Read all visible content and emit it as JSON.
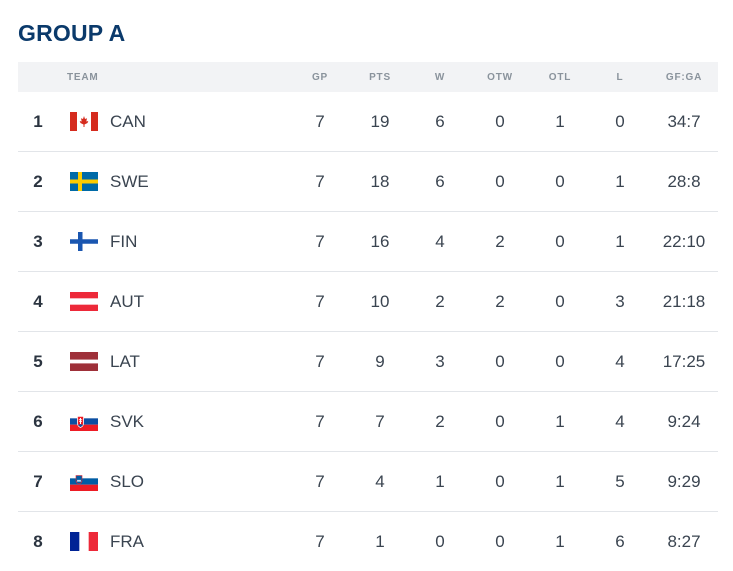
{
  "title": "GROUP A",
  "headers": {
    "team": "TEAM",
    "gp": "GP",
    "pts": "PTS",
    "w": "W",
    "otw": "OTW",
    "otl": "OTL",
    "l": "L",
    "gfga": "GF:GA"
  },
  "rows": [
    {
      "rank": "1",
      "team": "CAN",
      "flag": "canada-flag-icon",
      "gp": "7",
      "pts": "19",
      "w": "6",
      "otw": "0",
      "otl": "1",
      "l": "0",
      "gfga": "34:7"
    },
    {
      "rank": "2",
      "team": "SWE",
      "flag": "sweden-flag-icon",
      "gp": "7",
      "pts": "18",
      "w": "6",
      "otw": "0",
      "otl": "0",
      "l": "1",
      "gfga": "28:8"
    },
    {
      "rank": "3",
      "team": "FIN",
      "flag": "finland-flag-icon",
      "gp": "7",
      "pts": "16",
      "w": "4",
      "otw": "2",
      "otl": "0",
      "l": "1",
      "gfga": "22:10"
    },
    {
      "rank": "4",
      "team": "AUT",
      "flag": "austria-flag-icon",
      "gp": "7",
      "pts": "10",
      "w": "2",
      "otw": "2",
      "otl": "0",
      "l": "3",
      "gfga": "21:18"
    },
    {
      "rank": "5",
      "team": "LAT",
      "flag": "latvia-flag-icon",
      "gp": "7",
      "pts": "9",
      "w": "3",
      "otw": "0",
      "otl": "0",
      "l": "4",
      "gfga": "17:25"
    },
    {
      "rank": "6",
      "team": "SVK",
      "flag": "slovakia-flag-icon",
      "gp": "7",
      "pts": "7",
      "w": "2",
      "otw": "0",
      "otl": "1",
      "l": "4",
      "gfga": "9:24"
    },
    {
      "rank": "7",
      "team": "SLO",
      "flag": "slovenia-flag-icon",
      "gp": "7",
      "pts": "4",
      "w": "1",
      "otw": "0",
      "otl": "1",
      "l": "5",
      "gfga": "9:29"
    },
    {
      "rank": "8",
      "team": "FRA",
      "flag": "france-flag-icon",
      "gp": "7",
      "pts": "1",
      "w": "0",
      "otw": "0",
      "otl": "1",
      "l": "6",
      "gfga": "8:27"
    }
  ]
}
